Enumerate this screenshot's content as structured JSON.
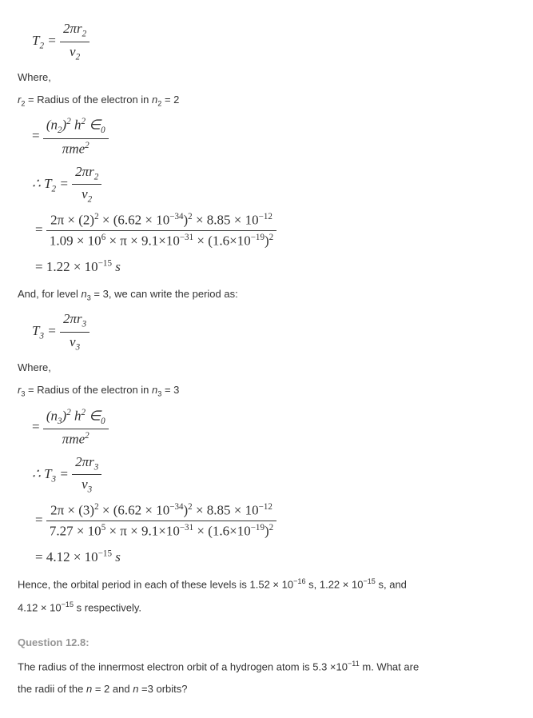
{
  "eq1_lhs": "T",
  "eq1_sub": "2",
  "eq1_num": "2πr",
  "eq1_num_sub": "2",
  "eq1_den": "v",
  "eq1_den_sub": "2",
  "where_label": "Where,",
  "r2_text_a": "r",
  "r2_text_sub": "2",
  "r2_text_b": " = Radius of the electron in ",
  "r2_text_c": "n",
  "r2_text_csub": "2",
  "r2_text_d": " = 2",
  "rad_formula_num_a": "(n",
  "rad_formula_num_asub": "2",
  "rad_formula_num_b": ")",
  "rad_formula_num_bsup": "2",
  "rad_formula_num_c": " h",
  "rad_formula_num_csup": "2",
  "rad_formula_num_d": " ∈",
  "rad_formula_num_dsub": "0",
  "rad_formula_den": "πme",
  "rad_formula_den_sup": "2",
  "therefore_sym": "∴ ",
  "T2_sym": "T",
  "T2_sub": "2",
  "eq_sym": " = ",
  "t2_big_num": "2π × (2)",
  "t2_big_num_sup1": "2",
  "t2_big_num_b": " × (6.62 × 10",
  "t2_big_num_sup2": "−34",
  "t2_big_num_c": ")",
  "t2_big_num_sup3": "2",
  "t2_big_num_d": " × 8.85 × 10",
  "t2_big_num_sup4": "−12",
  "t2_big_den_a": "1.09  ×  10",
  "t2_big_den_sup1": "6",
  "t2_big_den_b": " × π × 9.1×10",
  "t2_big_den_sup2": "−31",
  "t2_big_den_c": " × (1.6×10",
  "t2_big_den_sup3": "−19",
  "t2_big_den_d": ")",
  "t2_big_den_sup4": "2",
  "t2_result": "= 1.22 × 10",
  "t2_result_sup": "−15",
  "t2_result_unit": " s",
  "and_for_level_a": "And, for level ",
  "and_for_level_n": "n",
  "and_for_level_nsub": "3",
  "and_for_level_b": " = 3, we can write the period as:",
  "eq3_sub": "3",
  "r3_text_sub": "3",
  "r3_text_d": " = 3",
  "rad3_formula_num_asub": "3",
  "T3_sub": "3",
  "t3_big_num": "2π × (3)",
  "t3_big_den_a": "7.27  ×  10",
  "t3_big_den_sup1": "5",
  "t3_result": "= 4.12  ×  10",
  "t3_result_sup": "−15",
  "t3_result_unit": " s",
  "conclusion_a": "Hence, the orbital period in each of these levels is 1.52 × 10",
  "conclusion_sup1": "−16",
  "conclusion_b": " s, 1.22 × 10",
  "conclusion_sup2": "−15",
  "conclusion_c": " s, and",
  "conclusion_d": "4.12 × 10",
  "conclusion_sup3": "−15",
  "conclusion_e": " s respectively.",
  "question_heading": "Question 12.8:",
  "question_body_a": "The radius of the innermost electron orbit of a hydrogen atom is 5.3 ×10",
  "question_body_sup": "−11",
  "question_body_b": " m. What are",
  "question_body_c": "the radii of the ",
  "question_body_n": "n",
  "question_body_d": " = 2 and ",
  "question_body_e": " =3 orbits?"
}
